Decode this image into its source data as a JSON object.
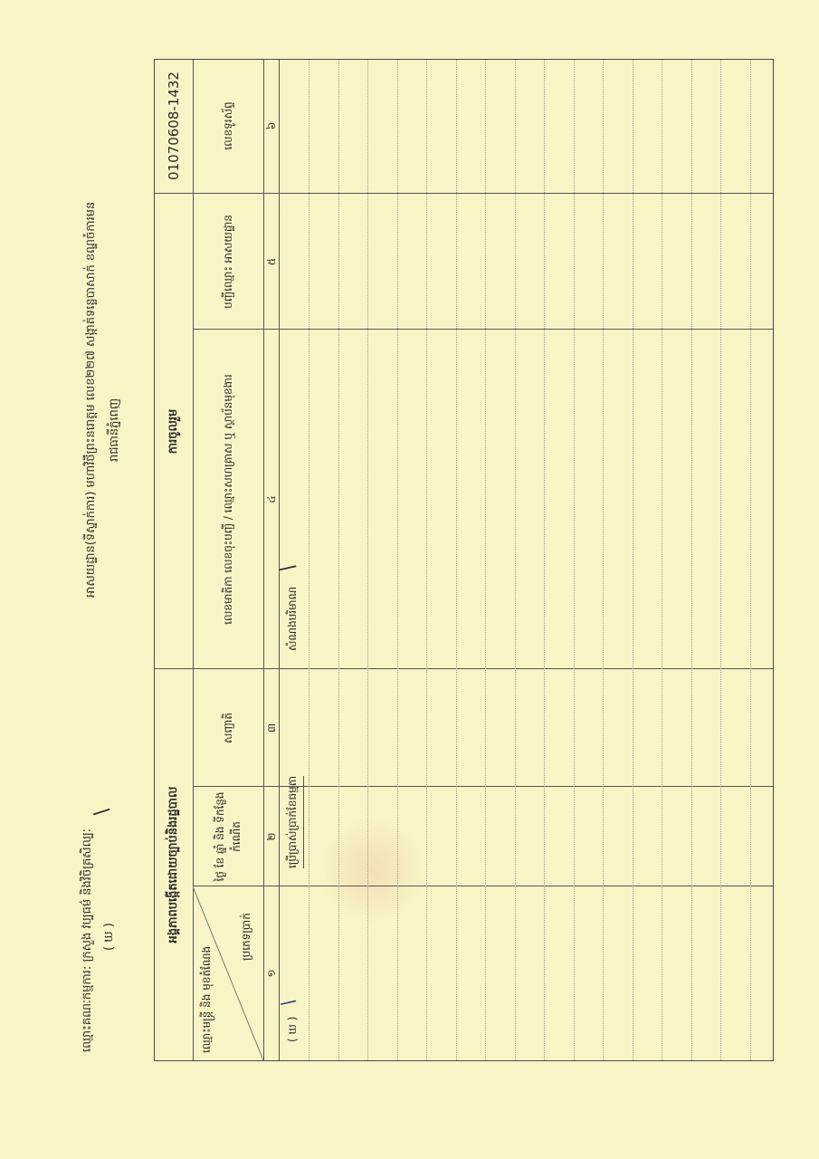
{
  "header": {
    "committee_label": "ឈ្មោះគណៈកម្មការ: ក្រសួង វប្បធម៌ និងវិចិត្រសិល្បៈ",
    "committee_sub": "( ឃ )",
    "address": "អាសយដ្ឋាន(ទីស្នាក់ការ) មហាវិថីព្រះនរោត្តម លេខ២២៧ សង្កាត់ទន្លេបាសាក់ ខណ្ឌចំការមន",
    "city": "រាជធានីភ្នំពេញ"
  },
  "table": {
    "group_headers": {
      "left": "អង្គភាពបង្កើតដោយច្បាប់និងរដ្ឋបាល",
      "middle": "ការចូលរួម",
      "right": "01070608-1432"
    },
    "col1": {
      "top": "ឈ្មោះមន្ត្រី និង មុខតំណែង",
      "bottom": "ប្រភេទប្រាក់"
    },
    "columns": [
      "ថ្ងៃ ខែ ឆ្នាំ និង ទីកន្លែងកំណើត",
      "សញ្ជាតិ",
      "លេខមាតិកា លេខចុះបញ្ជី / ឈ្មោះសហគ្រាស ឬ ស្ថាប័នមុខងារ",
      "បញ្ជីឈ្មោះ អាសយដ្ឋាន",
      "លេខទូរស័ព្ទ"
    ],
    "numbers": [
      "១",
      "២",
      "៣",
      "៤",
      "៥",
      "៦"
    ],
    "rows": [
      {
        "c1": "( ឃ )",
        "c23": "ប្រើប្រាស់ប្រាក់ខែធម្មតា",
        "c4": "សំណងបរិមាណ"
      }
    ]
  },
  "colors": {
    "paper": "#f8f4c6",
    "ink": "#2a2a2a",
    "stamp": "#d04040",
    "pen": "#2a3a9a"
  }
}
